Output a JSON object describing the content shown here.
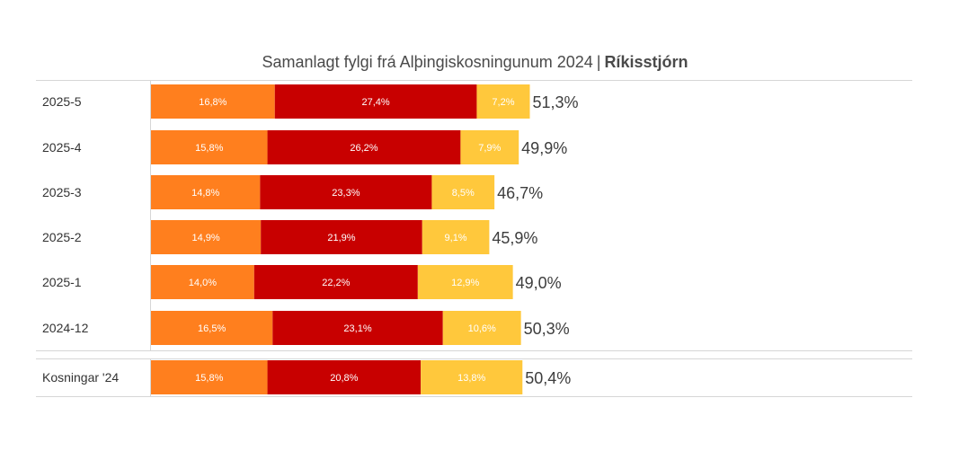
{
  "chart_data": {
    "type": "bar",
    "orientation": "horizontal",
    "stacked": true,
    "title": "Samanlagt fylgi frá Alþingiskosningunum 2024",
    "title_separator": "|",
    "title_emphasis": "Ríkisstjórn",
    "categories": [
      "2025-5",
      "2025-4",
      "2025-3",
      "2025-2",
      "2025-1",
      "2024-12",
      "Kosningar '24"
    ],
    "series": [
      {
        "color": "#ff7f1e",
        "values": [
          16.8,
          15.8,
          14.8,
          14.9,
          14.0,
          16.5,
          15.8
        ],
        "labels": [
          "16,8%",
          "15,8%",
          "14,8%",
          "14,9%",
          "14,0%",
          "16,5%",
          "15,8%"
        ]
      },
      {
        "color": "#c80000",
        "values": [
          27.4,
          26.2,
          23.3,
          21.9,
          22.2,
          23.1,
          20.8
        ],
        "labels": [
          "27,4%",
          "26,2%",
          "23,3%",
          "21,9%",
          "22,2%",
          "23,1%",
          "20,8%"
        ]
      },
      {
        "color": "#ffc83c",
        "values": [
          7.2,
          7.9,
          8.5,
          9.1,
          12.9,
          10.6,
          13.8
        ],
        "labels": [
          "7,2%",
          "7,9%",
          "8,5%",
          "9,1%",
          "12,9%",
          "10,6%",
          "13,8%"
        ]
      }
    ],
    "totals": [
      51.3,
      49.9,
      46.7,
      45.9,
      49.0,
      50.3,
      50.4
    ],
    "total_labels": [
      "51,3%",
      "49,9%",
      "46,7%",
      "45,9%",
      "49,0%",
      "50,3%",
      "50,4%"
    ],
    "separated_last_row": true,
    "legend": "none",
    "grid": false
  }
}
